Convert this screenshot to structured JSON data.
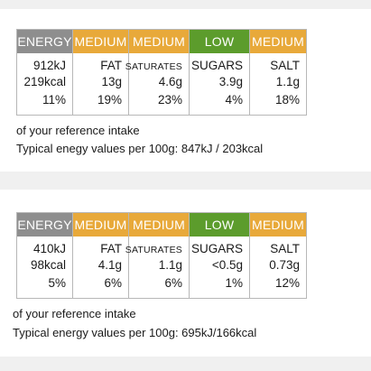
{
  "labels": [
    {
      "headers": [
        "ENERGY",
        "MEDIUM",
        "MEDIUM",
        "LOW",
        "MEDIUM"
      ],
      "names": [
        "",
        "FAT",
        "SATURATES",
        "SUGARS",
        "SALT"
      ],
      "amounts": [
        "912kJ",
        "13g",
        "4.6g",
        "3.9g",
        "1.1g"
      ],
      "amounts2": [
        "219kcal"
      ],
      "percents": [
        "11%",
        "19%",
        "23%",
        "4%",
        "18%"
      ],
      "reference": "of your reference intake",
      "typical": "Typical enegy values per 100g: 847kJ / 203kcal"
    },
    {
      "headers": [
        "ENERGY",
        "MEDIUM",
        "MEDIUM",
        "LOW",
        "MEDIUM"
      ],
      "names": [
        "",
        "FAT",
        "SATURATES",
        "SUGARS",
        "SALT"
      ],
      "amounts": [
        "410kJ",
        "4.1g",
        "1.1g",
        "<0.5g",
        "0.73g"
      ],
      "amounts2": [
        "98kcal"
      ],
      "percents": [
        "5%",
        "6%",
        "6%",
        "1%",
        "12%"
      ],
      "reference": "of your reference intake",
      "typical": "Typical energy values per 100g: 695kJ/166kcal"
    }
  ],
  "colors": {
    "grey": "#8e8e8e",
    "amber": "#e8a93a",
    "green": "#5c9c2c",
    "separator": "#f0f0f0"
  }
}
